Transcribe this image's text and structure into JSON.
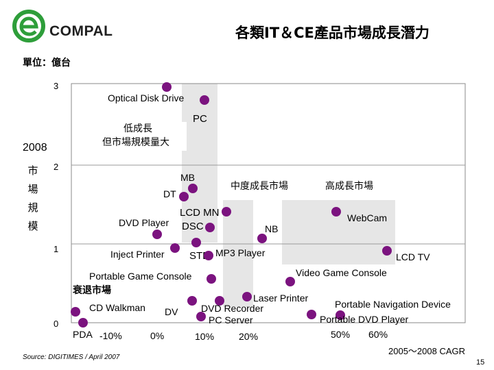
{
  "brand": {
    "name": "COMPAL",
    "color": "#2e9e3a"
  },
  "slide": {
    "title": "各類IT＆CE產品市場成長潛力",
    "unit_label": "單位：億台",
    "ylabel_year": "2008",
    "ylabel_chars": [
      "市",
      "場",
      "規",
      "模"
    ],
    "source": "Source: DIGITIMES / April 2007",
    "page_number": "15",
    "xaxis_title": "2005～2008 CAGR"
  },
  "chart_data": {
    "type": "scatter",
    "xlabel": "2005～2008 CAGR",
    "ylabel": "2008 市場規模",
    "y_unit": "億台",
    "x_ticks": [
      {
        "label": "-10%",
        "value": -10
      },
      {
        "label": "0%",
        "value": 0
      },
      {
        "label": "10%",
        "value": 10
      },
      {
        "label": "20%",
        "value": 20
      },
      {
        "label": "50%",
        "value": 50
      },
      {
        "label": "60%",
        "value": 60
      }
    ],
    "y_ticks": [
      {
        "label": "0",
        "value": 0
      },
      {
        "label": "1",
        "value": 1
      },
      {
        "label": "2",
        "value": 2
      },
      {
        "label": "3",
        "value": 3
      }
    ],
    "ylim": [
      0,
      3
    ],
    "grid": "horizontal",
    "marker_color": "#7b137f",
    "region_color": "#e6e6e6",
    "regions": [
      {
        "label": "低成長\n但市場規模量大"
      },
      {
        "label": "中度成長市場"
      },
      {
        "label": "高成長市場"
      },
      {
        "label": "衰退市場"
      }
    ],
    "points": [
      {
        "label": "Optical Disk Drive",
        "x": 1,
        "y": 3.0
      },
      {
        "label": "PC",
        "x": 7,
        "y": 2.85
      },
      {
        "label": "MB",
        "x": 6.5,
        "y": 1.74
      },
      {
        "label": "DT",
        "x": 5,
        "y": 1.68
      },
      {
        "label": "LCD MN",
        "x": 13,
        "y": 1.49
      },
      {
        "label": "DVD Player",
        "x": -1,
        "y": 1.2
      },
      {
        "label": "DSC",
        "x": 9,
        "y": 1.3
      },
      {
        "label": "NB",
        "x": 20,
        "y": 1.15
      },
      {
        "label": "WebCam",
        "x": 43,
        "y": 1.5
      },
      {
        "label": "Inject Printer",
        "x": 3,
        "y": 1.06
      },
      {
        "label": "STB",
        "x": 6,
        "y": 1.11
      },
      {
        "label": "MP3 Player",
        "x": 11,
        "y": 1.03
      },
      {
        "label": "LCD TV",
        "x": 53,
        "y": 1.02
      },
      {
        "label": "Portable Game Console",
        "x": 9.5,
        "y": 0.62
      },
      {
        "label": "Video Game Console",
        "x": 37,
        "y": 0.64
      },
      {
        "label": "Laser Printer",
        "x": 16,
        "y": 0.38
      },
      {
        "label": "DV",
        "x": 4,
        "y": 0.26
      },
      {
        "label": "DVD Recorder",
        "x": 10.5,
        "y": 0.34
      },
      {
        "label": "PC Server",
        "x": 8.5,
        "y": 0.12
      },
      {
        "label": "CD Walkman",
        "x": -18,
        "y": 0.18
      },
      {
        "label": "PDA",
        "x": -16,
        "y": 0.0
      },
      {
        "label": "Portable Navigation Device",
        "x": 33,
        "y": 0.12
      },
      {
        "label": "Portable DVD Player",
        "x": 38,
        "y": 0.07
      }
    ]
  }
}
